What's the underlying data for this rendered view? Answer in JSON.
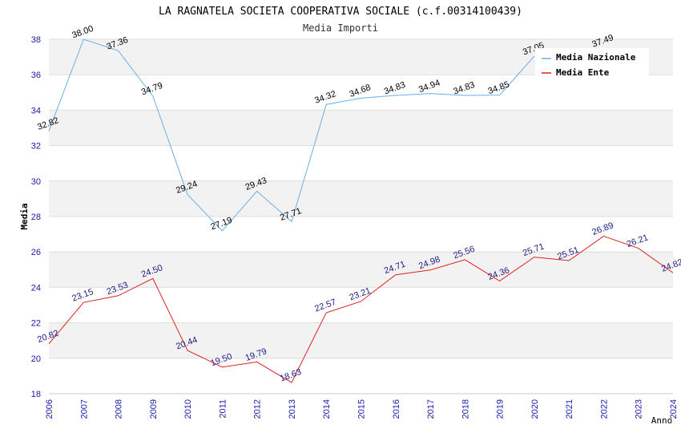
{
  "chart_data": {
    "type": "line",
    "title": "LA RAGNATELA SOCIETA COOPERATIVA SOCIALE (c.f.00314100439)",
    "subtitle": "Media Importi",
    "xlabel": "Anno",
    "ylabel": "Media",
    "ylim": [
      18,
      38
    ],
    "yticks": [
      "18",
      "20",
      "22",
      "24",
      "26",
      "28",
      "30",
      "32",
      "34",
      "36",
      "38"
    ],
    "x": [
      "2006",
      "2007",
      "2008",
      "2009",
      "2010",
      "2011",
      "2012",
      "2013",
      "2014",
      "2015",
      "2016",
      "2017",
      "2018",
      "2019",
      "2020",
      "2021",
      "2022",
      "2023",
      "2024"
    ],
    "legend_position": "top-right",
    "series": [
      {
        "name": "Media Nazionale",
        "color": "#6aaee8",
        "label_color": "#000000",
        "values": [
          32.82,
          38.0,
          37.36,
          34.79,
          29.24,
          27.19,
          29.43,
          27.71,
          34.32,
          34.68,
          34.83,
          34.94,
          34.83,
          34.85,
          37.05,
          null,
          37.49,
          null,
          null
        ],
        "labels": [
          "32.82",
          "38.00",
          "37.36",
          "34.79",
          "29.24",
          "27.19",
          "29.43",
          "27.71",
          "34.32",
          "34.68",
          "34.83",
          "34.94",
          "34.83",
          "34.85",
          "37.05",
          null,
          "37.49",
          null,
          null
        ]
      },
      {
        "name": "Media Ente",
        "color": "#e02020",
        "label_color": "#1a1a80",
        "values": [
          20.82,
          23.15,
          23.53,
          24.5,
          20.44,
          19.5,
          19.79,
          18.63,
          22.57,
          23.21,
          24.71,
          24.98,
          25.56,
          24.36,
          25.71,
          25.51,
          26.89,
          26.21,
          24.82
        ],
        "labels": [
          "20.82",
          "23.15",
          "23.53",
          "24.50",
          "20.44",
          "19.50",
          "19.79",
          "18.63",
          "22.57",
          "23.21",
          "24.71",
          "24.98",
          "25.56",
          "24.36",
          "25.71",
          "25.51",
          "26.89",
          "26.21",
          "24.82"
        ]
      }
    ]
  }
}
